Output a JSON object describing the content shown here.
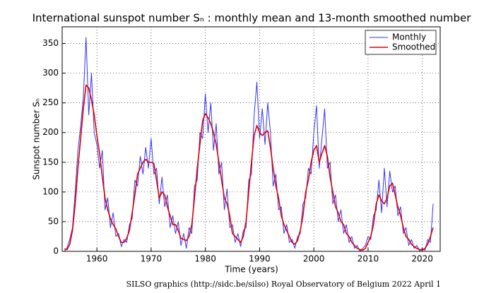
{
  "chart_data": {
    "type": "line",
    "title": "International sunspot number Sₙ : monthly mean and 13-month smoothed number",
    "x_label": "Time (years)",
    "y_label": "Sunspot number Sₙ",
    "footer": "SILSO graphics (http://sidc.be/silso)  Royal Observatory of Belgium  2022 April 1",
    "xlim": [
      1953.6,
      2023.3
    ],
    "ylim": [
      0,
      378
    ],
    "xticks": [
      1960,
      1970,
      1980,
      1990,
      2000,
      2010,
      2020
    ],
    "yticks": [
      0,
      50,
      100,
      150,
      200,
      250,
      300,
      350
    ],
    "grid": true,
    "legend": "upper right",
    "x": [
      1954.0,
      1954.5,
      1955.0,
      1955.5,
      1956.0,
      1956.5,
      1957.0,
      1957.5,
      1958.0,
      1958.5,
      1959.0,
      1959.5,
      1960.0,
      1960.5,
      1961.0,
      1961.5,
      1962.0,
      1962.5,
      1963.0,
      1963.5,
      1964.0,
      1964.5,
      1965.0,
      1965.5,
      1966.0,
      1966.5,
      1967.0,
      1967.5,
      1968.0,
      1968.5,
      1969.0,
      1969.5,
      1970.0,
      1970.5,
      1971.0,
      1971.5,
      1972.0,
      1972.5,
      1973.0,
      1973.5,
      1974.0,
      1974.5,
      1975.0,
      1975.5,
      1976.0,
      1976.5,
      1977.0,
      1977.5,
      1978.0,
      1978.5,
      1979.0,
      1979.5,
      1980.0,
      1980.5,
      1981.0,
      1981.5,
      1982.0,
      1982.5,
      1983.0,
      1983.5,
      1984.0,
      1984.5,
      1985.0,
      1985.5,
      1986.0,
      1986.5,
      1987.0,
      1987.5,
      1988.0,
      1988.5,
      1989.0,
      1989.5,
      1990.0,
      1990.5,
      1991.0,
      1991.5,
      1992.0,
      1992.5,
      1993.0,
      1993.5,
      1994.0,
      1994.5,
      1995.0,
      1995.5,
      1996.0,
      1996.5,
      1997.0,
      1997.5,
      1998.0,
      1998.5,
      1999.0,
      1999.5,
      2000.0,
      2000.5,
      2001.0,
      2001.5,
      2002.0,
      2002.5,
      2003.0,
      2003.5,
      2004.0,
      2004.5,
      2005.0,
      2005.5,
      2006.0,
      2006.5,
      2007.0,
      2007.5,
      2008.0,
      2008.5,
      2009.0,
      2009.5,
      2010.0,
      2010.5,
      2011.0,
      2011.5,
      2012.0,
      2012.5,
      2013.0,
      2013.5,
      2014.0,
      2014.5,
      2015.0,
      2015.5,
      2016.0,
      2016.5,
      2017.0,
      2017.5,
      2018.0,
      2018.5,
      2019.0,
      2019.5,
      2020.0,
      2020.5,
      2021.0,
      2021.5,
      2022.0
    ],
    "series": [
      {
        "name": "Monthly",
        "color": "#3333ff",
        "values": [
          0,
          6,
          20,
          40,
          100,
          170,
          210,
          260,
          360,
          230,
          300,
          200,
          180,
          140,
          170,
          70,
          90,
          40,
          65,
          25,
          30,
          8,
          20,
          15,
          45,
          55,
          120,
          110,
          160,
          130,
          175,
          140,
          190,
          130,
          140,
          80,
          125,
          75,
          95,
          40,
          60,
          30,
          50,
          10,
          30,
          5,
          40,
          30,
          110,
          120,
          200,
          190,
          265,
          200,
          250,
          170,
          215,
          130,
          150,
          70,
          105,
          40,
          45,
          15,
          30,
          8,
          35,
          40,
          120,
          130,
          230,
          285,
          190,
          240,
          180,
          250,
          200,
          110,
          130,
          70,
          75,
          30,
          45,
          15,
          20,
          5,
          25,
          30,
          80,
          90,
          140,
          130,
          200,
          245,
          140,
          190,
          240,
          140,
          150,
          80,
          95,
          50,
          70,
          30,
          45,
          15,
          25,
          5,
          10,
          0,
          5,
          10,
          25,
          20,
          60,
          70,
          120,
          65,
          140,
          75,
          135,
          100,
          110,
          60,
          75,
          30,
          40,
          10,
          20,
          5,
          10,
          1,
          5,
          2,
          20,
          15,
          80
        ]
      },
      {
        "name": "Smoothed",
        "color": "#dd0000",
        "values": [
          4,
          3,
          12,
          35,
          80,
          140,
          190,
          240,
          280,
          275,
          255,
          230,
          195,
          165,
          125,
          90,
          70,
          55,
          45,
          38,
          25,
          15,
          15,
          22,
          35,
          65,
          95,
          130,
          140,
          150,
          155,
          150,
          150,
          148,
          120,
          90,
          100,
          95,
          75,
          60,
          45,
          45,
          35,
          22,
          20,
          18,
          25,
          45,
          90,
          140,
          180,
          220,
          232,
          225,
          215,
          200,
          180,
          150,
          120,
          90,
          80,
          60,
          30,
          25,
          20,
          15,
          25,
          50,
          100,
          150,
          195,
          212,
          200,
          195,
          200,
          203,
          175,
          140,
          110,
          90,
          60,
          45,
          35,
          25,
          15,
          12,
          18,
          35,
          60,
          100,
          120,
          150,
          170,
          178,
          150,
          165,
          178,
          160,
          125,
          100,
          75,
          65,
          50,
          45,
          30,
          25,
          15,
          10,
          5,
          3,
          2,
          5,
          15,
          25,
          45,
          80,
          95,
          85,
          80,
          90,
          110,
          115,
          95,
          75,
          60,
          40,
          25,
          20,
          12,
          8,
          5,
          3,
          2,
          5,
          12,
          25,
          40
        ]
      }
    ]
  }
}
